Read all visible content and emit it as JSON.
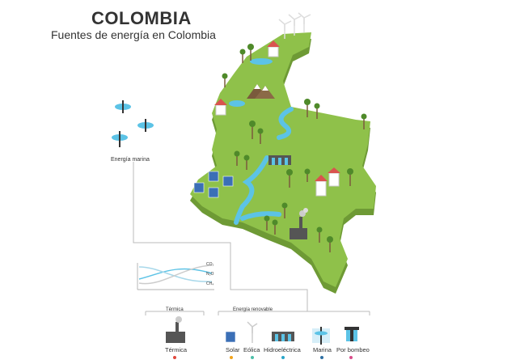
{
  "header": {
    "title": "COLOMBIA",
    "subtitle": "Fuentes de energía en Colombia"
  },
  "marine_callout": {
    "label": "Energía marina"
  },
  "chart_legend": {
    "co2": "CO₂",
    "n2o": "N₂O",
    "ch4": "CH₄"
  },
  "legend": {
    "groups": [
      {
        "title": "Térmica",
        "items": [
          {
            "label": "Térmica",
            "color": "#e0473c",
            "icon": "factory-icon"
          }
        ]
      },
      {
        "title": "Energía renovable",
        "items": [
          {
            "label": "Solar",
            "color": "#f2a31b",
            "icon": "solar-panel-icon"
          },
          {
            "label": "Eólica",
            "color": "#4dbfa8",
            "icon": "wind-turbine-icon"
          },
          {
            "label": "Hidroeléctrica",
            "color": "#2aa6c9",
            "icon": "dam-icon"
          },
          {
            "label": "Marina",
            "color": "#2f6fa3",
            "icon": "marine-turbine-icon"
          },
          {
            "label": "Por bombeo",
            "color": "#d94c8a",
            "icon": "pumped-storage-icon"
          }
        ]
      }
    ]
  },
  "colors": {
    "land_top": "#8fc14a",
    "land_side": "#6e9a35",
    "water": "#5cc3e6",
    "connector": "#bbbbbb"
  }
}
